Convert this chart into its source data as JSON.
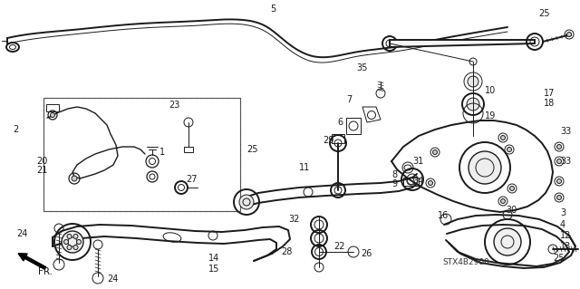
{
  "bg_color": "#ffffff",
  "line_color": "#1a1a1a",
  "lw_main": 1.4,
  "lw_thin": 0.7,
  "lw_thick": 2.0,
  "fs": 7.0,
  "dpi": 100,
  "figsize": [
    6.4,
    3.19
  ]
}
